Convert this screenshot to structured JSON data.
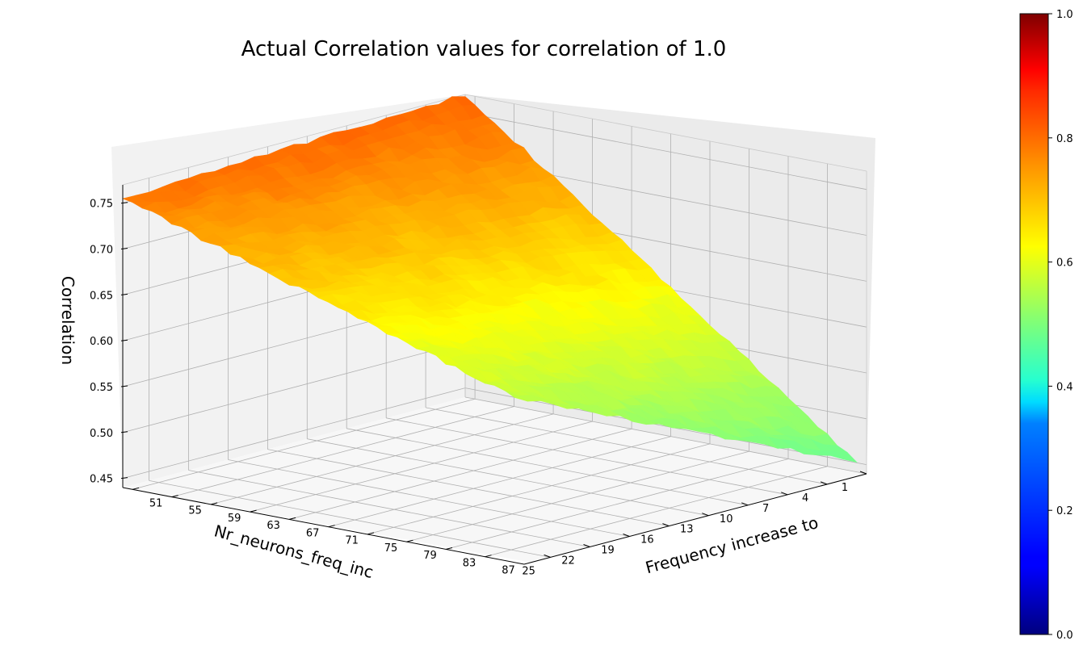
{
  "chart_data": {
    "type": "surface3d",
    "title": "Actual Correlation values for correlation of 1.0",
    "xlabel": "Nr_neurons_freq_inc",
    "ylabel": "Frequency increase to",
    "zlabel": "Correlation",
    "x_ticks": [
      "25",
      "22",
      "19",
      "16",
      "13",
      "10",
      "7",
      "4",
      "1"
    ],
    "y_ticks": [
      "51",
      "55",
      "59",
      "63",
      "67",
      "71",
      "75",
      "79",
      "83",
      "87"
    ],
    "z_ticks": [
      "0.45",
      "0.50",
      "0.55",
      "0.60",
      "0.65",
      "0.70",
      "0.75"
    ],
    "xlim": [
      1,
      27
    ],
    "ylim": [
      50,
      91
    ],
    "zlim": [
      0.44,
      0.77
    ],
    "grid": true,
    "colormap": "jet",
    "colorbar": {
      "ticks": [
        "0.0",
        "0.2",
        "0.4",
        "0.6",
        "0.8",
        "1.0"
      ],
      "range": [
        0.0,
        1.0
      ]
    },
    "surface": {
      "x_range": [
        1,
        27
      ],
      "y_range": [
        50,
        90
      ],
      "corner_values": {
        "x27_y50": 0.755,
        "x1_y50": 0.77,
        "x1_y90": 0.45,
        "x27_y90": 0.62
      },
      "color_values": {
        "x27_y50": 0.76,
        "x1_y50": 0.78,
        "x1_y90": 0.48,
        "x27_y90": 0.56
      }
    }
  }
}
